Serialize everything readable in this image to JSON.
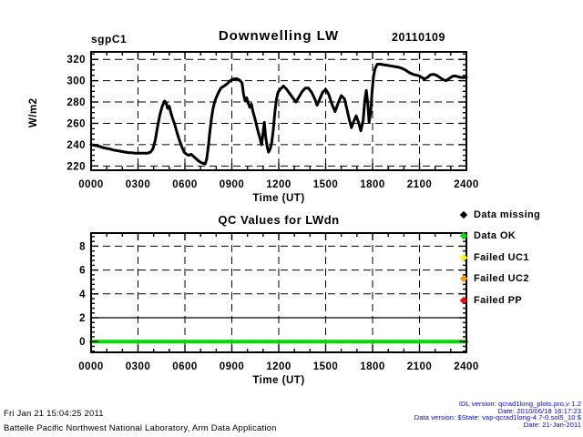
{
  "header": {
    "site_label": "sgpC1",
    "title": "Downwelling LW",
    "date_label": "20110109"
  },
  "chart_data": [
    {
      "type": "line",
      "title": "Downwelling LW",
      "site": "sgpC1",
      "date": "20110109",
      "xlabel": "Time (UT)",
      "ylabel": "W/m2",
      "xlim": [
        0,
        24
      ],
      "ylim": [
        216,
        327
      ],
      "xtick_values": [
        0,
        3,
        6,
        9,
        12,
        15,
        18,
        21,
        24
      ],
      "xtick_labels": [
        "0000",
        "0300",
        "0600",
        "0900",
        "1200",
        "1500",
        "1800",
        "2100",
        "2400"
      ],
      "ytick_values": [
        220,
        240,
        260,
        280,
        300,
        320
      ],
      "ytick_labels": [
        "220",
        "240",
        "260",
        "280",
        "300",
        "320"
      ],
      "grid_x": [
        3,
        6,
        9,
        12,
        15,
        18,
        21
      ],
      "grid_y": [
        220,
        240,
        260,
        280,
        300,
        320
      ],
      "minor_x_step": 1,
      "minor_y_step": 5,
      "grid_on": true,
      "legend_position": "none",
      "series": [
        {
          "name": "LWdn downwelling longwave irradiance",
          "color": "#000000",
          "width": 3,
          "points": [
            [
              0.0,
              240
            ],
            [
              0.2,
              239.5
            ],
            [
              0.4,
              239
            ],
            [
              0.6,
              238
            ],
            [
              0.8,
              237
            ],
            [
              1.0,
              236.5
            ],
            [
              1.2,
              236
            ],
            [
              1.4,
              235
            ],
            [
              1.6,
              234.5
            ],
            [
              1.8,
              234
            ],
            [
              2.0,
              233.5
            ],
            [
              2.2,
              233
            ],
            [
              2.4,
              232.5
            ],
            [
              2.6,
              232.5
            ],
            [
              2.8,
              232
            ],
            [
              3.0,
              232
            ],
            [
              3.2,
              232
            ],
            [
              3.4,
              232
            ],
            [
              3.6,
              232
            ],
            [
              3.8,
              233
            ],
            [
              3.95,
              236
            ],
            [
              4.1,
              244
            ],
            [
              4.25,
              257
            ],
            [
              4.4,
              268
            ],
            [
              4.55,
              276
            ],
            [
              4.7,
              281
            ],
            [
              4.8,
              279
            ],
            [
              4.9,
              274
            ],
            [
              5.0,
              276
            ],
            [
              5.1,
              270
            ],
            [
              5.2,
              265
            ],
            [
              5.35,
              259
            ],
            [
              5.5,
              251
            ],
            [
              5.65,
              244
            ],
            [
              5.8,
              238
            ],
            [
              5.95,
              233
            ],
            [
              6.1,
              231
            ],
            [
              6.25,
              230
            ],
            [
              6.4,
              231
            ],
            [
              6.55,
              229
            ],
            [
              6.7,
              227
            ],
            [
              6.85,
              225
            ],
            [
              7.0,
              223.5
            ],
            [
              7.15,
              222.5
            ],
            [
              7.3,
              222
            ],
            [
              7.4,
              227
            ],
            [
              7.5,
              239
            ],
            [
              7.6,
              253
            ],
            [
              7.7,
              265
            ],
            [
              7.8,
              274
            ],
            [
              7.9,
              280
            ],
            [
              8.0,
              284
            ],
            [
              8.15,
              289
            ],
            [
              8.3,
              293
            ],
            [
              8.5,
              295
            ],
            [
              8.7,
              297
            ],
            [
              8.9,
              300
            ],
            [
              9.1,
              301.5
            ],
            [
              9.3,
              302
            ],
            [
              9.5,
              300.5
            ],
            [
              9.65,
              298
            ],
            [
              9.75,
              287
            ],
            [
              9.85,
              281
            ],
            [
              9.95,
              284
            ],
            [
              10.05,
              279
            ],
            [
              10.15,
              275
            ],
            [
              10.25,
              278
            ],
            [
              10.35,
              271
            ],
            [
              10.5,
              263
            ],
            [
              10.65,
              254
            ],
            [
              10.8,
              246
            ],
            [
              10.9,
              240
            ],
            [
              11.0,
              251
            ],
            [
              11.08,
              261
            ],
            [
              11.15,
              249
            ],
            [
              11.25,
              239
            ],
            [
              11.35,
              233
            ],
            [
              11.45,
              236
            ],
            [
              11.55,
              242
            ],
            [
              11.65,
              254
            ],
            [
              11.75,
              270
            ],
            [
              11.85,
              282
            ],
            [
              11.95,
              289
            ],
            [
              12.1,
              292
            ],
            [
              12.3,
              295
            ],
            [
              12.5,
              292
            ],
            [
              12.7,
              288
            ],
            [
              12.9,
              284
            ],
            [
              13.1,
              280
            ],
            [
              13.3,
              285
            ],
            [
              13.5,
              290
            ],
            [
              13.7,
              293
            ],
            [
              13.9,
              293
            ],
            [
              14.1,
              289
            ],
            [
              14.3,
              283
            ],
            [
              14.45,
              277
            ],
            [
              14.6,
              282
            ],
            [
              14.8,
              289
            ],
            [
              15.0,
              292
            ],
            [
              15.2,
              287
            ],
            [
              15.4,
              278
            ],
            [
              15.6,
              271
            ],
            [
              15.8,
              279
            ],
            [
              16.0,
              286
            ],
            [
              16.2,
              283
            ],
            [
              16.35,
              274
            ],
            [
              16.5,
              264
            ],
            [
              16.65,
              256
            ],
            [
              16.8,
              262
            ],
            [
              16.95,
              267
            ],
            [
              17.1,
              261
            ],
            [
              17.25,
              253
            ],
            [
              17.4,
              263
            ],
            [
              17.5,
              281
            ],
            [
              17.6,
              291
            ],
            [
              17.7,
              278
            ],
            [
              17.78,
              261
            ],
            [
              17.88,
              270
            ],
            [
              17.96,
              288
            ],
            [
              18.05,
              303
            ],
            [
              18.15,
              311
            ],
            [
              18.3,
              315.5
            ],
            [
              18.5,
              315.5
            ],
            [
              18.7,
              315
            ],
            [
              18.9,
              314.5
            ],
            [
              19.1,
              314
            ],
            [
              19.3,
              313.5
            ],
            [
              19.5,
              313
            ],
            [
              19.7,
              312.5
            ],
            [
              19.9,
              311.5
            ],
            [
              20.1,
              310
            ],
            [
              20.3,
              308
            ],
            [
              20.5,
              306.5
            ],
            [
              20.7,
              305.5
            ],
            [
              20.9,
              305
            ],
            [
              21.1,
              303.5
            ],
            [
              21.3,
              301.5
            ],
            [
              21.5,
              303
            ],
            [
              21.7,
              305.5
            ],
            [
              21.9,
              306
            ],
            [
              22.1,
              305
            ],
            [
              22.3,
              303
            ],
            [
              22.5,
              301
            ],
            [
              22.7,
              300
            ],
            [
              22.9,
              302
            ],
            [
              23.1,
              304
            ],
            [
              23.3,
              304.5
            ],
            [
              23.5,
              303.5
            ],
            [
              23.7,
              303
            ],
            [
              23.9,
              303
            ],
            [
              24.0,
              303
            ]
          ]
        }
      ]
    },
    {
      "type": "line",
      "title": "QC Values for LWdn",
      "xlabel": "Time (UT)",
      "ylabel": "",
      "xlim": [
        0,
        24
      ],
      "ylim": [
        -0.9,
        9.1
      ],
      "xtick_values": [
        0,
        3,
        6,
        9,
        12,
        15,
        18,
        21,
        24
      ],
      "xtick_labels": [
        "0000",
        "0300",
        "0600",
        "0900",
        "1200",
        "1500",
        "1800",
        "2100",
        "2400"
      ],
      "ytick_values": [
        0,
        2,
        4,
        6,
        8
      ],
      "ytick_labels": [
        "0",
        "2",
        "4",
        "6",
        "8"
      ],
      "grid_x": [
        3,
        6,
        9,
        12,
        15,
        18,
        21
      ],
      "grid_y": [
        4,
        6,
        8
      ],
      "minor_x_step": 1,
      "minor_y_step": 0.4,
      "grid_on": true,
      "legend_position": "right",
      "series": [
        {
          "name": "qc-level-2-reference-line",
          "color": "#000000",
          "width": 1.2,
          "points": [
            [
              0,
              2
            ],
            [
              24,
              2
            ]
          ]
        },
        {
          "name": "QC values (all Data OK = 0)",
          "color": "#00DC00",
          "width": 4,
          "points": [
            [
              0,
              0
            ],
            [
              24,
              0
            ]
          ]
        }
      ]
    }
  ],
  "legend": {
    "items": [
      {
        "label": "Data missing",
        "color": "#000000"
      },
      {
        "label": "Data OK",
        "color": "#00DC00"
      },
      {
        "label": "Failed UC1",
        "color": "#FFFF00"
      },
      {
        "label": "Failed UC2",
        "color": "#FF9800"
      },
      {
        "label": "Failed PP",
        "color": "#FF0000"
      }
    ]
  },
  "footer": {
    "left_lines": [
      "Fri Jan 21 15:04:25 2011",
      "Battelle Pacific Northwest National Laboratory, Arm Data Application"
    ],
    "right_lines": [
      "IDL version: qcrad1long_plots.pro,v 1.2",
      "Date: 2010/06/18 16:17:23",
      "Data version: $State: vap-qcrad1long-4.7-0.sol5_10 $",
      "Date: 21-Jan-2011"
    ],
    "right_text_color": "#0000EE"
  }
}
